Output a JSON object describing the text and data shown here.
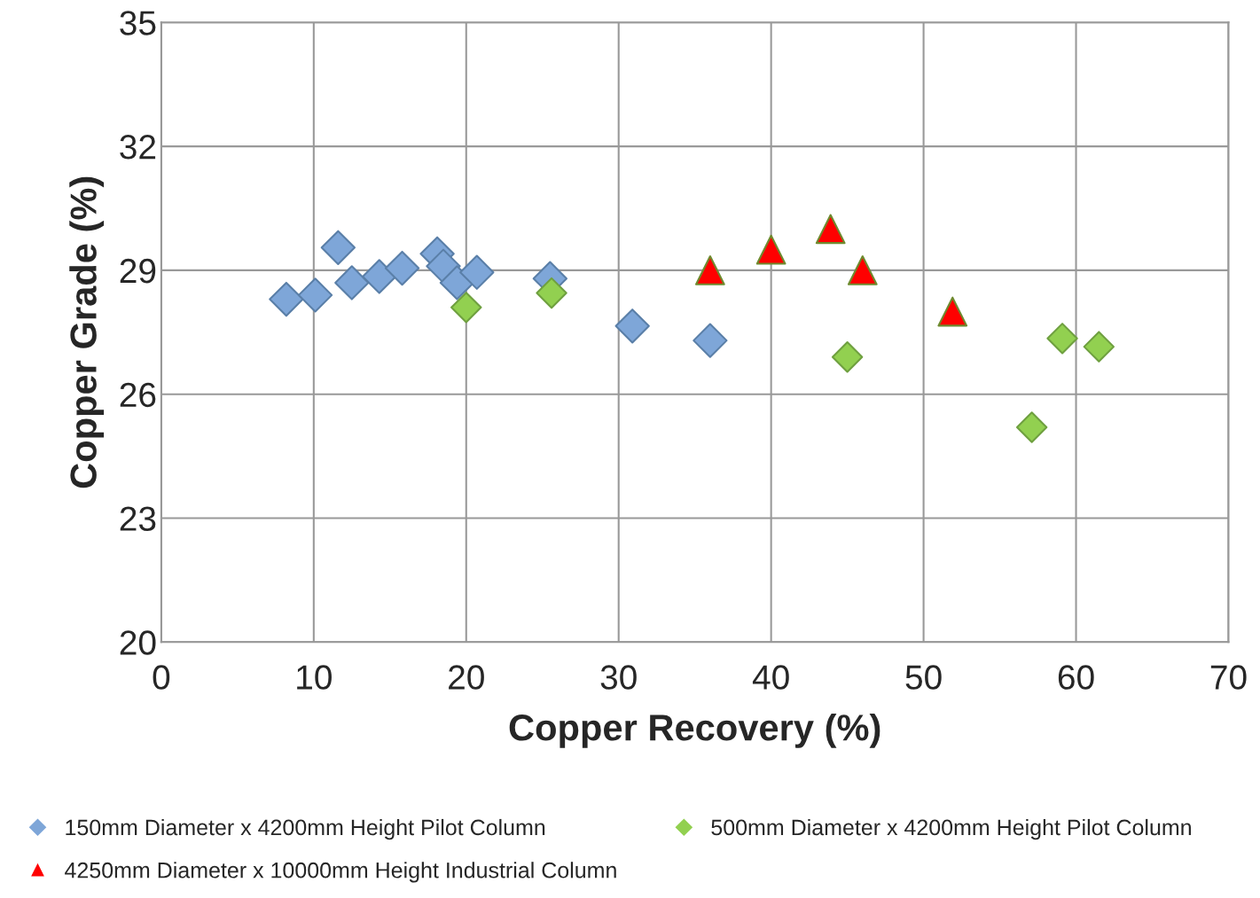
{
  "chart_data": {
    "type": "scatter",
    "xlabel": "Copper Recovery (%)",
    "ylabel": "Copper Grade (%)",
    "xlim": [
      0,
      70
    ],
    "xticks": [
      0,
      10,
      20,
      30,
      40,
      50,
      60,
      70
    ],
    "ylim": [
      20,
      35
    ],
    "yticks": [
      20,
      23,
      26,
      29,
      32,
      35
    ],
    "grid": true,
    "legend": "bottom",
    "series": [
      {
        "name": "150mm Diameter x 4200mm Height Pilot Column",
        "color": "#7ea6d8",
        "marker": "diamond",
        "x": [
          8.2,
          10.1,
          11.6,
          12.5,
          14.3,
          15.8,
          18.1,
          18.5,
          19.4,
          20.7,
          25.5,
          30.9,
          36.0
        ],
        "values": [
          28.3,
          28.4,
          29.55,
          28.7,
          28.85,
          29.05,
          29.4,
          29.1,
          28.7,
          28.95,
          28.8,
          27.65,
          27.3
        ]
      },
      {
        "name": "500mm Diameter x 4200mm Height Pilot Column",
        "color": "#92d050",
        "marker": "diamond",
        "x": [
          20.0,
          25.6,
          45.0,
          57.1,
          59.1,
          61.5
        ],
        "values": [
          28.1,
          28.45,
          26.9,
          25.2,
          27.35,
          27.15
        ]
      },
      {
        "name": "4250mm Diameter x 10000mm Height Industrial Column",
        "color": "#ff0000",
        "marker": "triangle",
        "x": [
          36.0,
          40.0,
          43.9,
          46.0,
          51.9
        ],
        "values": [
          29.0,
          29.5,
          30.0,
          29.0,
          28.0
        ]
      }
    ]
  }
}
